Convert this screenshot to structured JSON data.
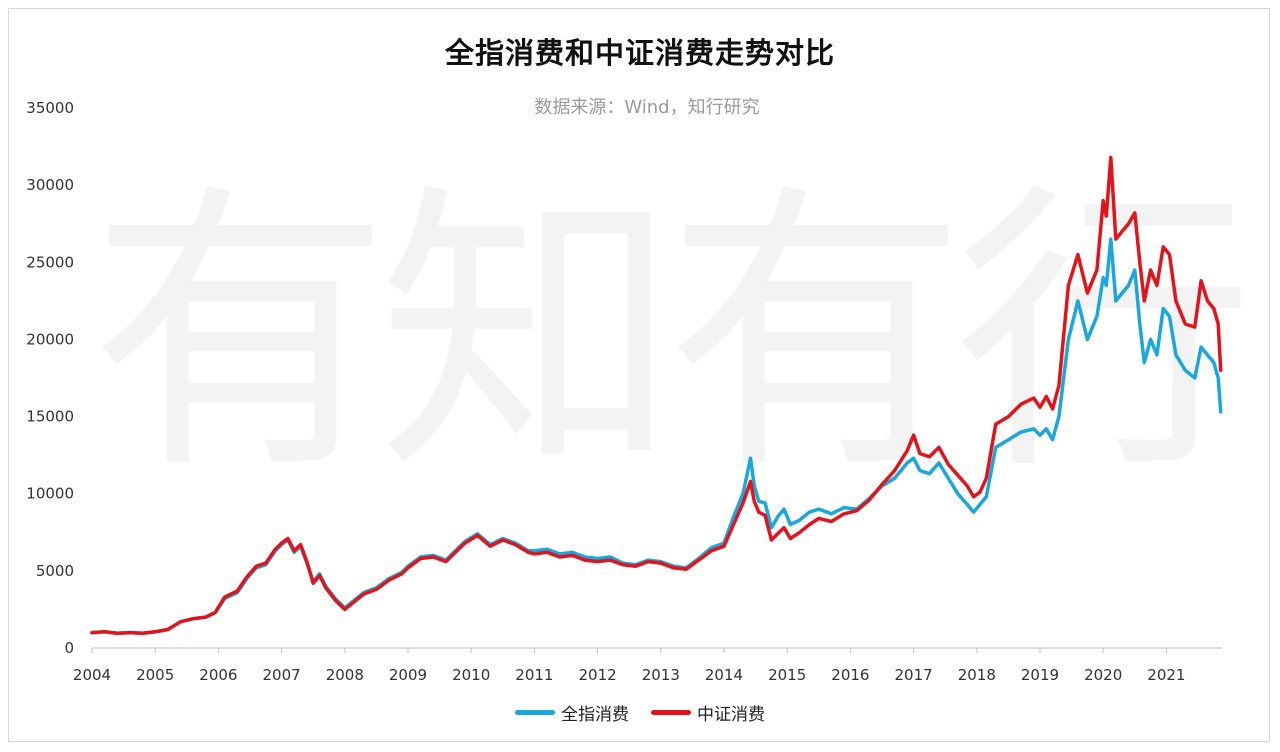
{
  "chart_data": {
    "type": "line",
    "title": "全指消费和中证消费走势对比",
    "subtitle": "数据来源：Wind，知行研究",
    "watermark": "有知有行",
    "xlabel": "",
    "ylabel": "",
    "ylim": [
      0,
      35000
    ],
    "yticks": [
      "0",
      "5000",
      "10000",
      "15000",
      "20000",
      "25000",
      "30000",
      "35000"
    ],
    "xlim": [
      2004.0,
      2021.88
    ],
    "xticks": [
      "2004",
      "2005",
      "2006",
      "2007",
      "2008",
      "2009",
      "2010",
      "2011",
      "2012",
      "2013",
      "2014",
      "2015",
      "2016",
      "2017",
      "2018",
      "2019",
      "2020",
      "2021"
    ],
    "grid": false,
    "legend_position": "bottom",
    "series": [
      {
        "name": "全指消费",
        "color": "#1aa7dd",
        "x": [
          2004.0,
          2004.2,
          2004.4,
          2004.6,
          2004.8,
          2005.0,
          2005.2,
          2005.4,
          2005.6,
          2005.8,
          2005.95,
          2006.1,
          2006.3,
          2006.45,
          2006.6,
          2006.75,
          2006.9,
          2007.0,
          2007.1,
          2007.2,
          2007.3,
          2007.4,
          2007.5,
          2007.6,
          2007.7,
          2007.85,
          2008.0,
          2008.15,
          2008.3,
          2008.5,
          2008.7,
          2008.9,
          2009.0,
          2009.2,
          2009.4,
          2009.6,
          2009.75,
          2009.9,
          2010.1,
          2010.3,
          2010.5,
          2010.7,
          2010.9,
          2011.0,
          2011.2,
          2011.4,
          2011.6,
          2011.8,
          2012.0,
          2012.2,
          2012.4,
          2012.6,
          2012.8,
          2013.0,
          2013.2,
          2013.4,
          2013.6,
          2013.8,
          2014.0,
          2014.15,
          2014.3,
          2014.42,
          2014.48,
          2014.55,
          2014.65,
          2014.75,
          2014.85,
          2014.95,
          2015.05,
          2015.2,
          2015.35,
          2015.5,
          2015.7,
          2015.9,
          2016.1,
          2016.3,
          2016.5,
          2016.7,
          2016.9,
          2017.0,
          2017.1,
          2017.25,
          2017.4,
          2017.55,
          2017.7,
          2017.85,
          2017.95,
          2018.05,
          2018.15,
          2018.3,
          2018.5,
          2018.7,
          2018.9,
          2019.0,
          2019.1,
          2019.2,
          2019.3,
          2019.45,
          2019.6,
          2019.75,
          2019.9,
          2020.0,
          2020.05,
          2020.12,
          2020.2,
          2020.3,
          2020.4,
          2020.5,
          2020.58,
          2020.65,
          2020.75,
          2020.85,
          2020.95,
          2021.05,
          2021.15,
          2021.3,
          2021.45,
          2021.55,
          2021.65,
          2021.75,
          2021.82,
          2021.86
        ],
        "values": [
          1000,
          1050,
          950,
          1000,
          950,
          1050,
          1200,
          1700,
          1900,
          2000,
          2300,
          3200,
          3600,
          4500,
          5200,
          5400,
          6300,
          6700,
          7000,
          6200,
          6600,
          5500,
          4300,
          4800,
          4000,
          3200,
          2600,
          3100,
          3600,
          3900,
          4500,
          4900,
          5300,
          5900,
          6000,
          5700,
          6300,
          6900,
          7400,
          6700,
          7100,
          6800,
          6300,
          6300,
          6400,
          6100,
          6200,
          5900,
          5800,
          5900,
          5500,
          5400,
          5700,
          5600,
          5300,
          5200,
          5800,
          6500,
          6800,
          8500,
          10000,
          12300,
          10500,
          9500,
          9400,
          7800,
          8500,
          9000,
          8000,
          8300,
          8800,
          9000,
          8700,
          9100,
          9000,
          9700,
          10500,
          11000,
          12000,
          12300,
          11500,
          11300,
          12000,
          11000,
          10000,
          9300,
          8800,
          9300,
          9800,
          13000,
          13500,
          14000,
          14200,
          13800,
          14200,
          13500,
          15000,
          20000,
          22500,
          20000,
          21500,
          24000,
          23500,
          26500,
          22500,
          23000,
          23500,
          24500,
          21000,
          18500,
          20000,
          19000,
          22000,
          21500,
          19000,
          18000,
          17500,
          19500,
          19000,
          18500,
          17500,
          15300
        ]
      },
      {
        "name": "中证消费",
        "color": "#e3131b",
        "x": [
          2004.0,
          2004.2,
          2004.4,
          2004.6,
          2004.8,
          2005.0,
          2005.2,
          2005.4,
          2005.6,
          2005.8,
          2005.95,
          2006.1,
          2006.3,
          2006.45,
          2006.6,
          2006.75,
          2006.9,
          2007.0,
          2007.1,
          2007.2,
          2007.3,
          2007.4,
          2007.5,
          2007.6,
          2007.7,
          2007.85,
          2008.0,
          2008.15,
          2008.3,
          2008.5,
          2008.7,
          2008.9,
          2009.0,
          2009.2,
          2009.4,
          2009.6,
          2009.75,
          2009.9,
          2010.1,
          2010.3,
          2010.5,
          2010.7,
          2010.9,
          2011.0,
          2011.2,
          2011.4,
          2011.6,
          2011.8,
          2012.0,
          2012.2,
          2012.4,
          2012.6,
          2012.8,
          2013.0,
          2013.2,
          2013.4,
          2013.6,
          2013.8,
          2014.0,
          2014.15,
          2014.3,
          2014.42,
          2014.48,
          2014.55,
          2014.65,
          2014.75,
          2014.85,
          2014.95,
          2015.05,
          2015.2,
          2015.35,
          2015.5,
          2015.7,
          2015.9,
          2016.1,
          2016.3,
          2016.5,
          2016.7,
          2016.9,
          2017.0,
          2017.1,
          2017.25,
          2017.4,
          2017.55,
          2017.7,
          2017.85,
          2017.95,
          2018.05,
          2018.15,
          2018.3,
          2018.5,
          2018.7,
          2018.9,
          2019.0,
          2019.1,
          2019.2,
          2019.3,
          2019.45,
          2019.6,
          2019.75,
          2019.9,
          2020.0,
          2020.05,
          2020.12,
          2020.2,
          2020.3,
          2020.4,
          2020.5,
          2020.58,
          2020.65,
          2020.75,
          2020.85,
          2020.95,
          2021.05,
          2021.15,
          2021.3,
          2021.45,
          2021.55,
          2021.65,
          2021.75,
          2021.82,
          2021.86
        ],
        "values": [
          1000,
          1050,
          950,
          1000,
          950,
          1050,
          1200,
          1700,
          1900,
          2000,
          2300,
          3300,
          3700,
          4600,
          5300,
          5500,
          6400,
          6800,
          7100,
          6300,
          6700,
          5600,
          4200,
          4700,
          3900,
          3100,
          2500,
          3000,
          3500,
          3800,
          4400,
          4800,
          5200,
          5800,
          5900,
          5600,
          6200,
          6800,
          7300,
          6600,
          7000,
          6700,
          6200,
          6100,
          6200,
          5900,
          6000,
          5700,
          5600,
          5700,
          5400,
          5300,
          5600,
          5500,
          5200,
          5100,
          5700,
          6300,
          6600,
          8000,
          9400,
          10800,
          9500,
          8800,
          8600,
          7000,
          7400,
          7800,
          7100,
          7500,
          8000,
          8400,
          8200,
          8700,
          8900,
          9600,
          10600,
          11500,
          12800,
          13800,
          12600,
          12400,
          13000,
          11900,
          11200,
          10500,
          9800,
          10100,
          11000,
          14500,
          15000,
          15800,
          16200,
          15600,
          16300,
          15500,
          17000,
          23500,
          25500,
          23000,
          24500,
          29000,
          28000,
          31800,
          26500,
          27000,
          27500,
          28200,
          25000,
          22500,
          24500,
          23500,
          26000,
          25500,
          22500,
          21000,
          20800,
          23800,
          22500,
          22000,
          21000,
          18000
        ]
      }
    ]
  }
}
